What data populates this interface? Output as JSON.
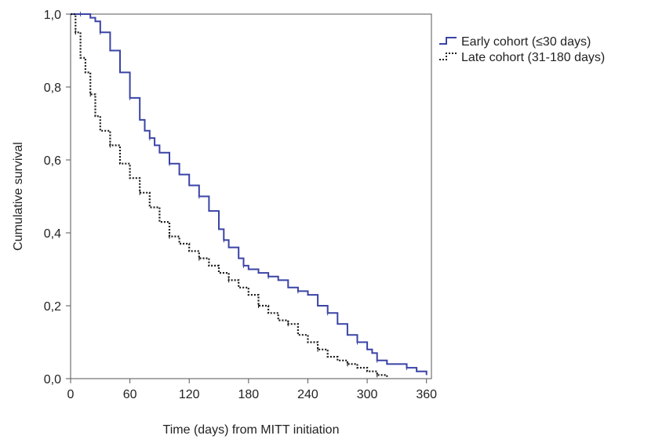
{
  "chart_data": {
    "type": "line",
    "title": "",
    "xlabel": "Time (days) from MITT initiation",
    "ylabel": "Cumulative survival",
    "xlim": [
      0,
      365
    ],
    "ylim": [
      0.0,
      1.0
    ],
    "x_ticks": [
      "0",
      "60",
      "120",
      "180",
      "240",
      "300",
      "360"
    ],
    "y_ticks": [
      "0,0",
      "0,2",
      "0,4",
      "0,6",
      "0,8",
      "1,0"
    ],
    "x_tick_values": [
      0,
      60,
      120,
      180,
      240,
      300,
      360
    ],
    "y_tick_values": [
      0.0,
      0.2,
      0.4,
      0.6,
      0.8,
      1.0
    ],
    "grid": false,
    "legend_position": "top-right outside",
    "series": [
      {
        "name": "Early cohort (≤30 days)",
        "color": "#3a43a6",
        "style": "solid-step",
        "x": [
          0,
          10,
          20,
          25,
          30,
          40,
          50,
          60,
          70,
          75,
          80,
          85,
          90,
          100,
          110,
          120,
          130,
          140,
          150,
          155,
          160,
          170,
          175,
          180,
          190,
          200,
          210,
          220,
          230,
          240,
          250,
          260,
          270,
          280,
          290,
          300,
          305,
          310,
          320,
          330,
          340,
          350,
          360
        ],
        "y": [
          1.0,
          1.0,
          0.99,
          0.98,
          0.95,
          0.9,
          0.84,
          0.77,
          0.71,
          0.68,
          0.66,
          0.64,
          0.62,
          0.59,
          0.56,
          0.53,
          0.5,
          0.46,
          0.41,
          0.38,
          0.36,
          0.33,
          0.31,
          0.3,
          0.29,
          0.28,
          0.27,
          0.25,
          0.24,
          0.23,
          0.2,
          0.18,
          0.15,
          0.12,
          0.1,
          0.08,
          0.07,
          0.05,
          0.04,
          0.04,
          0.03,
          0.02,
          0.01
        ]
      },
      {
        "name": "Late cohort (31-180 days)",
        "color": "#1a1a1a",
        "style": "dotted-step",
        "x": [
          0,
          5,
          10,
          15,
          20,
          25,
          30,
          40,
          50,
          60,
          70,
          80,
          90,
          100,
          110,
          120,
          130,
          140,
          150,
          160,
          170,
          180,
          190,
          200,
          210,
          220,
          230,
          240,
          250,
          260,
          270,
          280,
          290,
          300,
          310,
          320
        ],
        "y": [
          1.0,
          0.95,
          0.88,
          0.84,
          0.78,
          0.72,
          0.68,
          0.64,
          0.59,
          0.55,
          0.51,
          0.47,
          0.43,
          0.39,
          0.37,
          0.35,
          0.33,
          0.31,
          0.29,
          0.27,
          0.25,
          0.23,
          0.2,
          0.18,
          0.16,
          0.15,
          0.12,
          0.1,
          0.08,
          0.06,
          0.05,
          0.04,
          0.03,
          0.02,
          0.01,
          0.005
        ]
      }
    ]
  }
}
